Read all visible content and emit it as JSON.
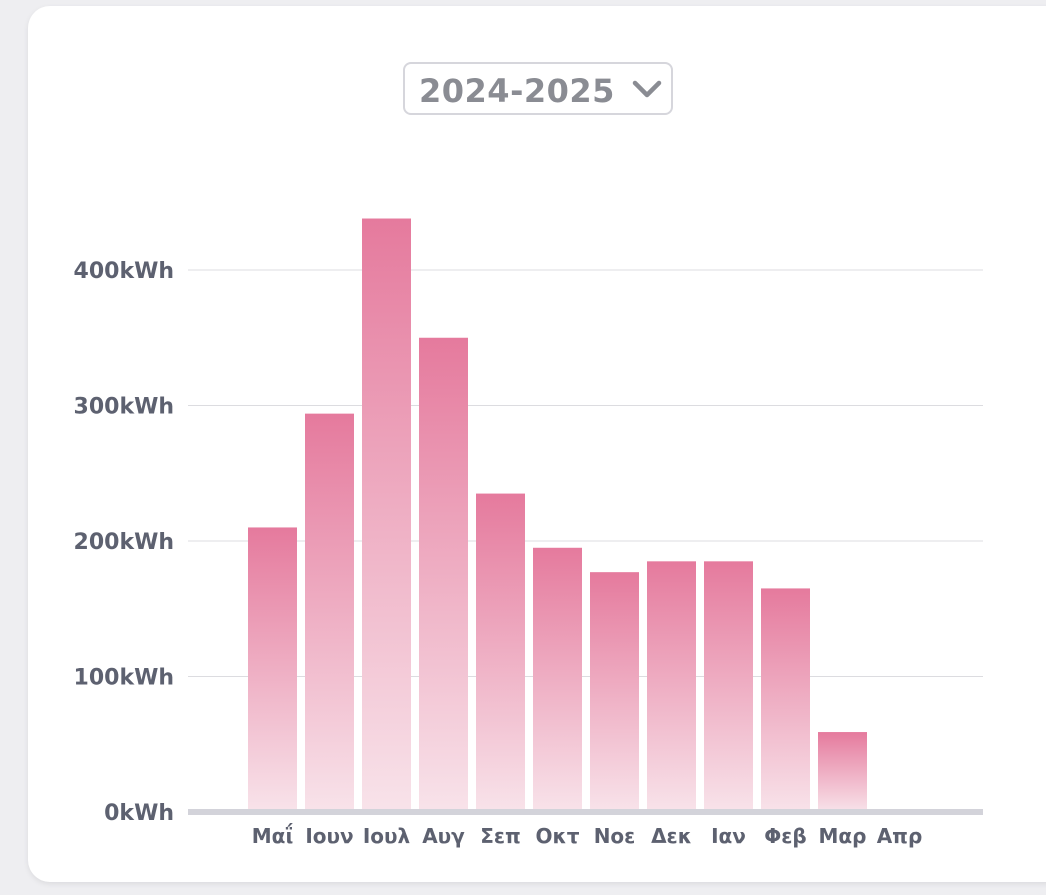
{
  "selector": {
    "value": "2024-2025"
  },
  "colors": {
    "bar_top": "#e57a9d",
    "bar_bottom": "#f8e3ea",
    "grid": "#dcdce0",
    "baseline": "#d3d3da",
    "label": "#5d6170"
  },
  "chart_data": {
    "type": "bar",
    "title": "",
    "xlabel": "",
    "ylabel": "",
    "categories": [
      "Μαΐ",
      "Ιουν",
      "Ιουλ",
      "Αυγ",
      "Σεπ",
      "Οκτ",
      "Νοε",
      "Δεκ",
      "Ιαν",
      "Φεβ",
      "Μαρ",
      "Απρ"
    ],
    "values": [
      210,
      294,
      438,
      350,
      235,
      195,
      177,
      185,
      185,
      165,
      59,
      0
    ],
    "ylim": [
      0,
      400
    ],
    "yticks": [
      0,
      100,
      200,
      300,
      400
    ],
    "ytick_labels": [
      "0kWh",
      "100kWh",
      "200kWh",
      "300kWh",
      "400kWh"
    ],
    "grid": true,
    "legend": "none"
  }
}
